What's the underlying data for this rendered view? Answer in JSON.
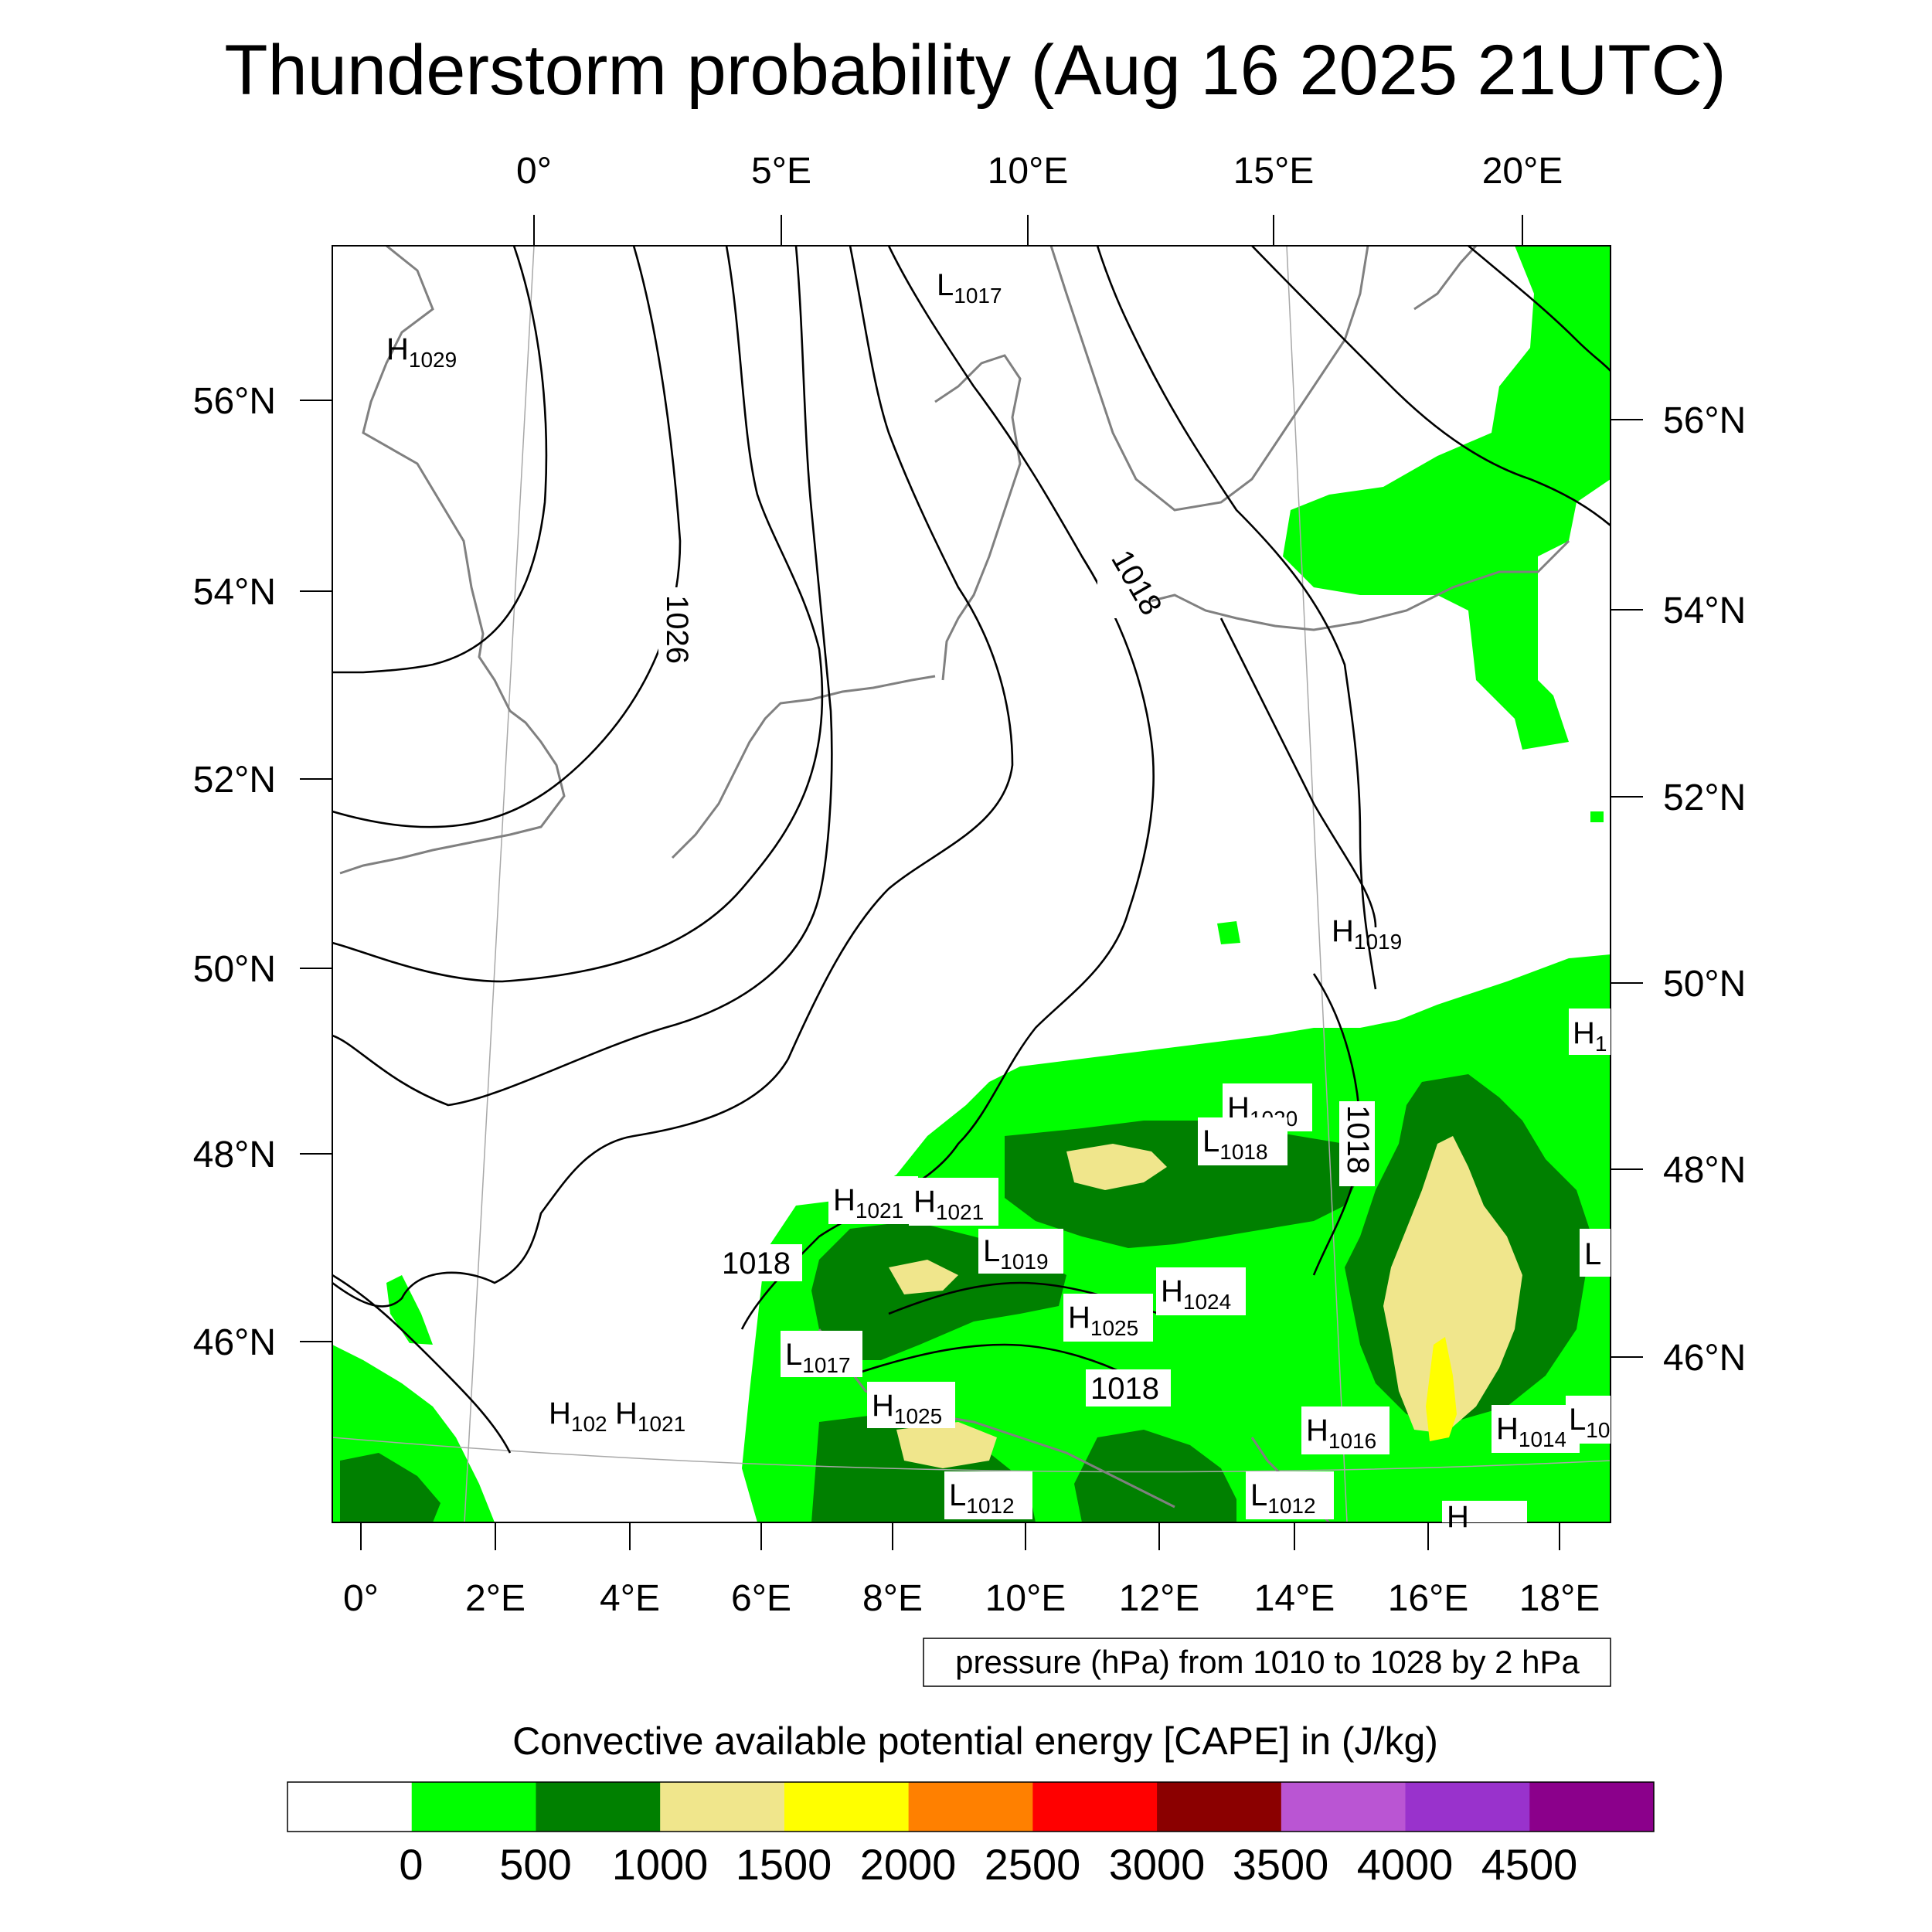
{
  "title": "Thunderstorm probability (Aug 16 2025 21UTC)",
  "top_lon_labels": [
    "0°",
    "5°E",
    "10°E",
    "15°E",
    "20°E"
  ],
  "bottom_lon_labels": [
    "0°",
    "2°E",
    "4°E",
    "6°E",
    "8°E",
    "10°E",
    "12°E",
    "14°E",
    "16°E",
    "18°E"
  ],
  "left_lat_labels": [
    "56°N",
    "54°N",
    "52°N",
    "50°N",
    "48°N",
    "46°N"
  ],
  "right_lat_labels": [
    "56°N",
    "54°N",
    "52°N",
    "50°N",
    "48°N",
    "46°N"
  ],
  "pressure_note": "pressure (hPa) from 1010 to 1028 by 2 hPa",
  "isobar_labels": [
    "1026",
    "1018",
    "1018",
    "1018",
    "1018"
  ],
  "pressure_centers": [
    {
      "type": "H",
      "value": "1029"
    },
    {
      "type": "L",
      "value": "1017"
    },
    {
      "type": "H",
      "value": "1019"
    },
    {
      "type": "H",
      "value": "1"
    },
    {
      "type": "H",
      "value": "1020"
    },
    {
      "type": "L",
      "value": "1018"
    },
    {
      "type": "H",
      "value": "1021"
    },
    {
      "type": "H",
      "value": "1021"
    },
    {
      "type": "L",
      "value": "1019"
    },
    {
      "type": "H",
      "value": "1024"
    },
    {
      "type": "H",
      "value": "1025"
    },
    {
      "type": "L",
      "value": "1017"
    },
    {
      "type": "H",
      "value": "1025"
    },
    {
      "type": "H",
      "value": "102"
    },
    {
      "type": "H",
      "value": "1021"
    },
    {
      "type": "H",
      "value": "1016"
    },
    {
      "type": "H",
      "value": "1014"
    },
    {
      "type": "L",
      "value": "10"
    },
    {
      "type": "L",
      "value": "1012"
    },
    {
      "type": "L",
      "value": "1012"
    },
    {
      "type": "L",
      "value": ""
    },
    {
      "type": "H",
      "value": ""
    }
  ],
  "colorbar": {
    "title": "Convective available potential energy [CAPE] in (J/kg)",
    "colors": [
      "#ffffff",
      "#00ff00",
      "#008000",
      "#f0e68c",
      "#ffff00",
      "#ff8000",
      "#ff0000",
      "#8b0000",
      "#ba55d3",
      "#9932cc",
      "#8b008b"
    ],
    "tick_labels": [
      "0",
      "500",
      "1000",
      "1500",
      "2000",
      "2500",
      "3000",
      "3500",
      "4000",
      "4500"
    ]
  },
  "legend_colors": {
    "cape_0_500": "#00ff00",
    "cape_500_1000": "#008000",
    "cape_1000_1500": "#f0e68c",
    "cape_1500_2000": "#ffff00",
    "coastline": "#808080",
    "isobar": "#000000"
  }
}
